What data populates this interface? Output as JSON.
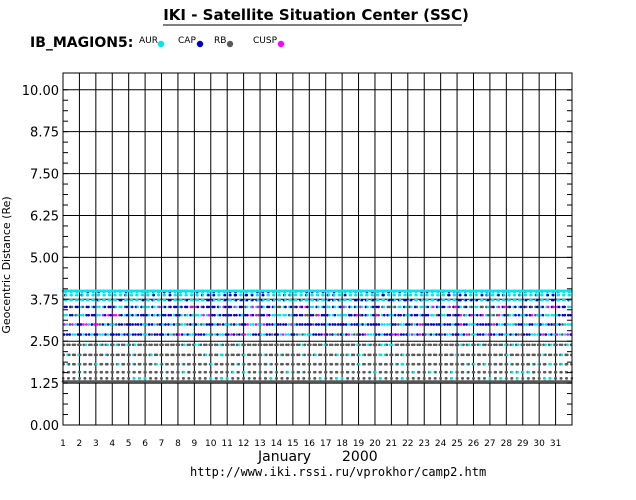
{
  "header": {
    "title": "IKI - Satellite Situation Center (SSC)"
  },
  "footer": {
    "url": "http://www.iki.rssi.ru/vprokhor/camp2.htm"
  },
  "chart_data": {
    "type": "scatter",
    "satellite": "IB_MAGION5:",
    "ylabel": "Geocentric Distance (Re)",
    "xlabel_month": "January",
    "xlabel_year": "2000",
    "ylim": [
      0,
      10.5
    ],
    "y_ticks": [
      "0.00",
      "1.25",
      "2.50",
      "3.75",
      "5.00",
      "6.25",
      "7.50",
      "8.75",
      "10.00"
    ],
    "y_tick_values": [
      0,
      1.25,
      2.5,
      3.75,
      5.0,
      6.25,
      7.5,
      8.75,
      10.0
    ],
    "x_ticks": [
      "1",
      "2",
      "3",
      "4",
      "5",
      "6",
      "7",
      "8",
      "9",
      "10",
      "11",
      "12",
      "13",
      "14",
      "15",
      "16",
      "17",
      "18",
      "19",
      "20",
      "21",
      "22",
      "23",
      "24",
      "25",
      "26",
      "27",
      "28",
      "29",
      "30",
      "31"
    ],
    "xlim": [
      1,
      32
    ],
    "grid": true,
    "legend_placement": "top-left",
    "series": [
      {
        "name": "AUR",
        "color": "#00e5ee",
        "band": [
          1.3,
          4.0
        ]
      },
      {
        "name": "CAP",
        "color": "#0000cd",
        "band": [
          2.2,
          3.9
        ]
      },
      {
        "name": "RB",
        "color": "#5a5a5a",
        "band": [
          1.25,
          2.5
        ]
      },
      {
        "name": "CUSP",
        "color": "#ff00ff",
        "band": [
          2.6,
          3.5
        ]
      }
    ],
    "orbit": {
      "perigee": 1.3,
      "apogee": 4.0,
      "orbits_per_day": 3
    }
  }
}
